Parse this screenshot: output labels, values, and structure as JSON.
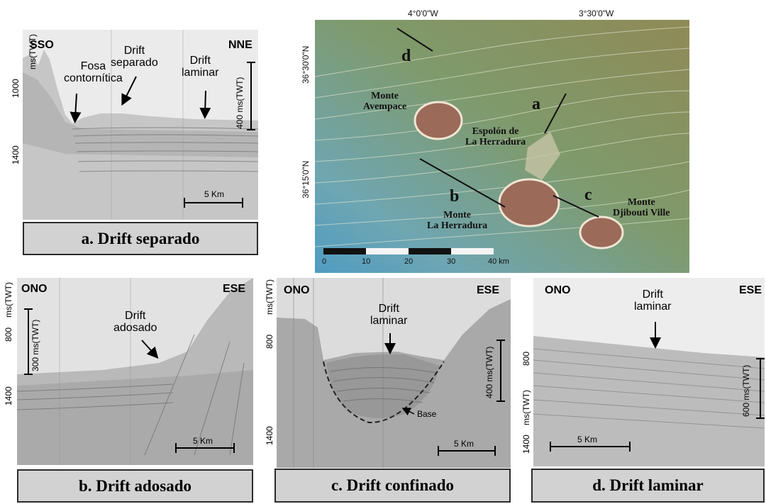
{
  "panel_a": {
    "left_dir": "SSO",
    "right_dir": "NNE",
    "label_fosa": "Fosa\ncontornítica",
    "label_drift_sep": "Drift\nseparado",
    "label_drift_lam": "Drift\nlaminar",
    "axis_unit": "ms(TWT)",
    "tick_1000": "1000",
    "tick_1400": "1400",
    "vscale": "400 ms(TWT)",
    "hscale": "5 Km",
    "caption": "a. Drift separado"
  },
  "map": {
    "lon_1": "4°0'0\"W",
    "lon_2": "3°30'0\"W",
    "lat_1": "36°30'0\"N",
    "lat_2": "36°15'0\"N",
    "letter_a": "a",
    "letter_b": "b",
    "letter_c": "c",
    "letter_d": "d",
    "avempace": "Monte\nAvempace",
    "espolon": "Espolón de\nLa Herradura",
    "herradura": "Monte\nLa Herradura",
    "djibouti": "Monte\nDjibouti Ville",
    "scale_0": "0",
    "scale_10": "10",
    "scale_20": "20",
    "scale_30": "30",
    "scale_40": "40 km"
  },
  "panel_b": {
    "left_dir": "ONO",
    "right_dir": "ESE",
    "label_drift": "Drift\nadosado",
    "axis_unit": "ms(TWT)",
    "tick_800": "800",
    "tick_1400": "1400",
    "vscale": "300 ms(TWT)",
    "hscale": "5 Km",
    "caption": "b. Drift adosado"
  },
  "panel_c": {
    "left_dir": "ONO",
    "right_dir": "ESE",
    "label_drift": "Drift\nlaminar",
    "label_base": "Base",
    "axis_unit": "ms(TWT)",
    "tick_800": "800",
    "tick_1400": "1400",
    "vscale": "400 ms(TWT)",
    "hscale": "5 Km",
    "caption": "c. Drift confinado"
  },
  "panel_d": {
    "left_dir": "ONO",
    "right_dir": "ESE",
    "label_drift": "Drift\nlaminar",
    "axis_unit": "ms(TWT)",
    "tick_800": "800",
    "tick_1400": "1400",
    "vscale": "600 ms(TWT)",
    "hscale": "5 Km",
    "caption": "d. Drift laminar"
  },
  "colors": {
    "caption_bg": "#d2d2d2",
    "caption_border": "#2b2b2b",
    "map_land": "#8a8a58",
    "map_deep": "#5aa0bf",
    "seamount": "#9b6a58"
  }
}
